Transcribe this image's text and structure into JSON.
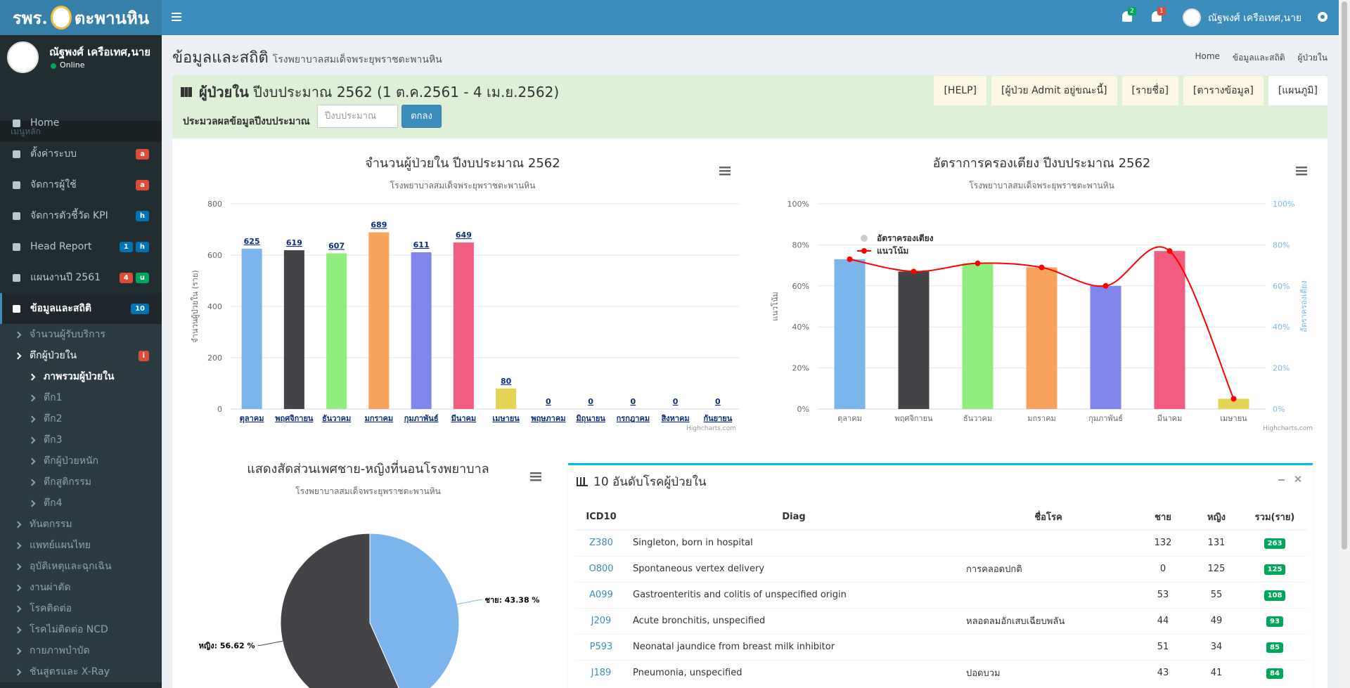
{
  "header": {
    "logo": {
      "left": "รพร.",
      "right": "ตะพานหิน"
    },
    "notifications": [
      {
        "text": "2",
        "color": "#00a65a"
      },
      {
        "text": "1",
        "color": "#dd4b39"
      }
    ],
    "user_name": "ณัฐพงศ์ เครือเทศ,นาย"
  },
  "sidebar": {
    "user_name": "ณัฐพงศ์ เครือเทศ,นาย",
    "status": "Online",
    "menu_header": "เมนูหลัก",
    "menu": [
      {
        "label": "Home"
      },
      {
        "label": "ตั้งค่าระบบ",
        "badges": [
          {
            "text": "a",
            "color": "#dd4b39"
          }
        ]
      },
      {
        "label": "จัดการผู้ใช้",
        "badges": [
          {
            "text": "a",
            "color": "#dd4b39"
          }
        ]
      },
      {
        "label": "จัดการตัวชี้วัด KPI",
        "badges": [
          {
            "text": "h",
            "color": "#0073b7"
          }
        ]
      },
      {
        "label": "Head Report",
        "badges": [
          {
            "text": "1",
            "color": "#0073b7"
          },
          {
            "text": "h",
            "color": "#0073b7"
          }
        ]
      },
      {
        "label": "แผนงานปี 2561",
        "badges": [
          {
            "text": "4",
            "color": "#dd4b39"
          },
          {
            "text": "u",
            "color": "#00a65a"
          }
        ]
      },
      {
        "label": "ข้อมูลและสถิติ",
        "badges": [
          {
            "text": "10",
            "color": "#0073b7"
          }
        ]
      }
    ],
    "submenu": [
      {
        "label": "จำนวนผู้รับบริการ"
      },
      {
        "label": "ตึกผู้ป่วยใน",
        "badges": [
          {
            "text": "i",
            "color": "#dd4b39"
          }
        ],
        "children": [
          "ภาพรวมผู้ป่วยใน",
          "ตึก1",
          "ตึก2",
          "ตึก3",
          "ตึกผู้ป่วยหนัก",
          "ตึกสูติกรรม",
          "ตึก4"
        ]
      },
      {
        "label": "ทันตกรรม"
      },
      {
        "label": "แพทย์แผนไทย"
      },
      {
        "label": "อุบัติเหตุและฉุกเฉิน"
      },
      {
        "label": "งานผ่าตัด"
      },
      {
        "label": "โรคติดต่อ"
      },
      {
        "label": "โรคไม่ติดต่อ NCD"
      },
      {
        "label": "กายภาพบำบัด"
      },
      {
        "label": "ชันสูตรและ X-Ray"
      }
    ]
  },
  "content": {
    "title": "ข้อมูลและสถิติ",
    "subtitle": "โรงพยาบาลสมเด็จพระยุพราชตะพานหิน",
    "breadcrumb": [
      "Home",
      "ข้อมูลและสถิติ",
      "ผู้ป่วยใน"
    ],
    "box": {
      "title": "ผู้ป่วยใน",
      "period": "ปีงบประมาณ 2562 (1 ต.ค.2561 - 4 เม.ย.2562)",
      "tabs": [
        "[HELP]",
        "[ผู้ป่วย Admit อยู่ขณะนี้]",
        "[รายชื่อ]",
        "[ตารางข้อมูล]",
        "[แผนภูมิ]"
      ],
      "form_label": "ประมวลผลข้อมูลปีงบประมาณ",
      "input_placeholder": "ปีงบประมาณ",
      "button": "ตกลง"
    }
  },
  "chart_data": [
    {
      "type": "bar",
      "title": "จำนวนผู้ป่วยใน ปีงบประมาณ 2562",
      "subtitle": "โรงพยาบาลสมเด็จพระยุพราชตะพานหิน",
      "y_label": "จำนวนผู้ป่วยใน (ราย)",
      "categories": [
        "ตุลาคม",
        "พฤศจิกายน",
        "ธันวาคม",
        "มกราคม",
        "กุมภาพันธ์",
        "มีนาคม",
        "เมษายน",
        "พฤษภาคม",
        "มิถุนายน",
        "กรกฎาคม",
        "สิงหาคม",
        "กันยายน"
      ],
      "values": [
        625,
        619,
        607,
        689,
        611,
        649,
        80,
        0,
        0,
        0,
        0,
        0
      ],
      "colors": [
        "#7cb5ec",
        "#434348",
        "#90ed7d",
        "#f7a35c",
        "#8085e9",
        "#f15c80",
        "#e4d354",
        "#2b908f",
        "#f45b5b",
        "#91e8e1",
        "#7cb5ec",
        "#434348"
      ],
      "ylim": [
        0,
        800
      ],
      "yticks": [
        0,
        200,
        400,
        600,
        800
      ],
      "grid": true,
      "credits": "Highcharts.com"
    },
    {
      "type": "combo",
      "title": "อัตราการครองเตียง ปีงบประมาณ 2562",
      "subtitle": "โรงพยาบาลสมเด็จพระยุพราชตะพานหิน",
      "y_label": "แนวโน้ม",
      "y2_label": "อัตราครองเตียง",
      "categories": [
        "ตุลาคม",
        "พฤศจิกายน",
        "ธันวาคม",
        "มกราคม",
        "กุมภาพันธ์",
        "มีนาคม",
        "เมษายน"
      ],
      "series": [
        {
          "name": "อัตราครองเตียง",
          "type": "bar",
          "axis": "y2",
          "color": "#cccccc",
          "colors": [
            "#7cb5ec",
            "#434348",
            "#90ed7d",
            "#f7a35c",
            "#8085e9",
            "#f15c80",
            "#e4d354"
          ],
          "values": [
            73,
            67,
            71,
            69,
            60,
            77,
            5
          ]
        },
        {
          "name": "แนวโน้ม",
          "type": "spline",
          "color": "#ff0000",
          "values": [
            73,
            67,
            71,
            69,
            60,
            77,
            5
          ]
        }
      ],
      "ylim": [
        0,
        100
      ],
      "yticks": [
        {
          "value": 0,
          "label": "0%"
        },
        {
          "value": 20,
          "label": "20%"
        },
        {
          "value": 40,
          "label": "40%"
        },
        {
          "value": 60,
          "label": "60%"
        },
        {
          "value": 80,
          "label": "80%"
        },
        {
          "value": 100,
          "label": "100%"
        }
      ],
      "y2lim": [
        0,
        100
      ],
      "y2ticks": [
        {
          "value": 0,
          "label": "0%"
        },
        {
          "value": 20,
          "label": "20%"
        },
        {
          "value": 40,
          "label": "40%"
        },
        {
          "value": 60,
          "label": "60%"
        },
        {
          "value": 80,
          "label": "80%"
        },
        {
          "value": 100,
          "label": "100%"
        }
      ],
      "grid": true,
      "legend": "top-left",
      "credits": "Highcharts.com"
    },
    {
      "type": "pie",
      "title": "แสดงสัดส่วนเพศชาย-หญิงที่นอนโรงพยาบาล",
      "subtitle": "โรงพยาบาลสมเด็จพระยุพราชตะพานหิน",
      "categories": [
        "ชาย",
        "หญิง"
      ],
      "values": [
        43.38,
        56.62
      ],
      "value_labels": [
        "ชาย: 43.38 %",
        "หญิง: 56.62 %"
      ],
      "colors": [
        "#7cb5ec",
        "#434348"
      ]
    }
  ],
  "table": {
    "title": "10 อันดับโรคผู้ป่วยใน",
    "columns": [
      "ICD10",
      "Diag",
      "ชื่อโรค",
      "ชาย",
      "หญิง",
      "รวม(ราย)"
    ],
    "rows": [
      [
        "Z380",
        "Singleton, born in hospital",
        null,
        132,
        131,
        263
      ],
      [
        "O800",
        "Spontaneous vertex delivery",
        "การคลอดปกติ",
        0,
        125,
        125
      ],
      [
        "A099",
        "Gastroenteritis and colitis of unspecified origin",
        null,
        53,
        55,
        108
      ],
      [
        "J209",
        "Acute bronchitis, unspecified",
        "หลอดลมอักเสบเฉียบพลัน",
        44,
        49,
        93
      ],
      [
        "P593",
        "Neonatal jaundice from breast milk inhibitor",
        null,
        51,
        34,
        85
      ],
      [
        "J189",
        "Pneumonia, unspecified",
        "ปอดบวม",
        43,
        41,
        84
      ]
    ]
  }
}
